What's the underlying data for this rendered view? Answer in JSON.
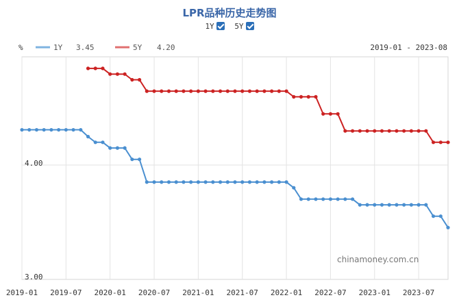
{
  "chart_data": {
    "type": "line",
    "title": "LPR品种历史走势图",
    "unit": "%",
    "date_range": "2019-01 - 2023-08",
    "watermark": "chinamoney.com.cn",
    "toggles": [
      {
        "label": "1Y",
        "checked": true
      },
      {
        "label": "5Y",
        "checked": true
      }
    ],
    "legend": [
      {
        "name": "1Y",
        "value": "3.45",
        "color": "#7fb3e0"
      },
      {
        "name": "5Y",
        "value": "4.20",
        "color": "#e07070"
      }
    ],
    "y_ticks": [
      "4.00",
      "3.00"
    ],
    "x_ticks": [
      "2019-01",
      "2019-07",
      "2020-01",
      "2020-07",
      "2021-01",
      "2021-07",
      "2022-01",
      "2022-07",
      "2023-01",
      "2023-07"
    ],
    "ylim": [
      3.0,
      4.95
    ],
    "grid": true,
    "series": [
      {
        "name": "1Y",
        "color": "#4a8fd0",
        "start_x": 0,
        "values": [
          4.31,
          4.31,
          4.31,
          4.31,
          4.31,
          4.31,
          4.31,
          4.31,
          4.31,
          4.25,
          4.2,
          4.2,
          4.15,
          4.15,
          4.15,
          4.05,
          4.05,
          3.85,
          3.85,
          3.85,
          3.85,
          3.85,
          3.85,
          3.85,
          3.85,
          3.85,
          3.85,
          3.85,
          3.85,
          3.85,
          3.85,
          3.85,
          3.85,
          3.85,
          3.85,
          3.85,
          3.85,
          3.8,
          3.7,
          3.7,
          3.7,
          3.7,
          3.7,
          3.7,
          3.7,
          3.7,
          3.65,
          3.65,
          3.65,
          3.65,
          3.65,
          3.65,
          3.65,
          3.65,
          3.65,
          3.65,
          3.55,
          3.55,
          3.45
        ]
      },
      {
        "name": "5Y",
        "color": "#cc2222",
        "start_x": 9,
        "values": [
          4.85,
          4.85,
          4.85,
          4.8,
          4.8,
          4.8,
          4.75,
          4.75,
          4.65,
          4.65,
          4.65,
          4.65,
          4.65,
          4.65,
          4.65,
          4.65,
          4.65,
          4.65,
          4.65,
          4.65,
          4.65,
          4.65,
          4.65,
          4.65,
          4.65,
          4.65,
          4.65,
          4.65,
          4.6,
          4.6,
          4.6,
          4.6,
          4.45,
          4.45,
          4.45,
          4.3,
          4.3,
          4.3,
          4.3,
          4.3,
          4.3,
          4.3,
          4.3,
          4.3,
          4.3,
          4.3,
          4.3,
          4.2,
          4.2,
          4.2
        ]
      }
    ]
  }
}
